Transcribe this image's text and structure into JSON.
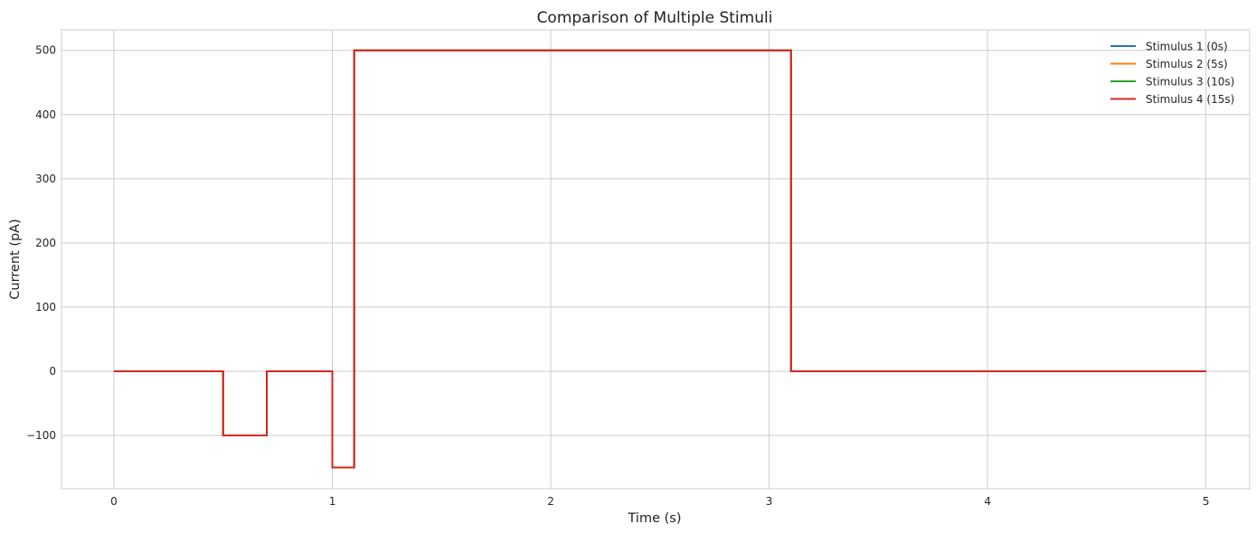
{
  "chart_data": {
    "type": "line",
    "title": "Comparison of Multiple Stimuli",
    "xlabel": "Time (s)",
    "ylabel": "Current (pA)",
    "xlim": [
      -0.24,
      5.2
    ],
    "ylim": [
      -183,
      532
    ],
    "xticks": [
      0,
      1,
      2,
      3,
      4,
      5
    ],
    "xtick_labels": [
      "0",
      "1",
      "2",
      "3",
      "4",
      "5"
    ],
    "yticks": [
      -100,
      0,
      100,
      200,
      300,
      400,
      500
    ],
    "ytick_labels": [
      "−100",
      "0",
      "100",
      "200",
      "300",
      "400",
      "500"
    ],
    "grid": true,
    "legend_position": "top-right",
    "series": [
      {
        "name": "Stimulus 1 (0s)",
        "color": "#1f77b4",
        "step_points": [
          [
            0,
            0
          ],
          [
            0.5,
            0
          ],
          [
            0.5,
            -100
          ],
          [
            0.7,
            -100
          ],
          [
            0.7,
            0
          ],
          [
            1.0,
            0
          ],
          [
            1.0,
            -150
          ],
          [
            1.1,
            -150
          ],
          [
            1.1,
            500
          ],
          [
            3.1,
            500
          ],
          [
            3.1,
            0
          ],
          [
            5.0,
            0
          ]
        ]
      },
      {
        "name": "Stimulus 2 (5s)",
        "color": "#ff7f0e",
        "step_points": [
          [
            0,
            0
          ],
          [
            0.5,
            0
          ],
          [
            0.5,
            -100
          ],
          [
            0.7,
            -100
          ],
          [
            0.7,
            0
          ],
          [
            1.0,
            0
          ],
          [
            1.0,
            -150
          ],
          [
            1.1,
            -150
          ],
          [
            1.1,
            500
          ],
          [
            3.1,
            500
          ],
          [
            3.1,
            0
          ],
          [
            5.0,
            0
          ]
        ]
      },
      {
        "name": "Stimulus 3 (10s)",
        "color": "#2ca02c",
        "step_points": [
          [
            0,
            0
          ],
          [
            0.5,
            0
          ],
          [
            0.5,
            -100
          ],
          [
            0.7,
            -100
          ],
          [
            0.7,
            0
          ],
          [
            1.0,
            0
          ],
          [
            1.0,
            -150
          ],
          [
            1.1,
            -150
          ],
          [
            1.1,
            500
          ],
          [
            3.1,
            500
          ],
          [
            3.1,
            0
          ],
          [
            5.0,
            0
          ]
        ]
      },
      {
        "name": "Stimulus 4 (15s)",
        "color": "#d62728",
        "step_points": [
          [
            0,
            0
          ],
          [
            0.5,
            0
          ],
          [
            0.5,
            -100
          ],
          [
            0.7,
            -100
          ],
          [
            0.7,
            0
          ],
          [
            1.0,
            0
          ],
          [
            1.0,
            -150
          ],
          [
            1.1,
            -150
          ],
          [
            1.1,
            500
          ],
          [
            3.1,
            500
          ],
          [
            3.1,
            0
          ],
          [
            5.0,
            0
          ]
        ]
      }
    ]
  }
}
